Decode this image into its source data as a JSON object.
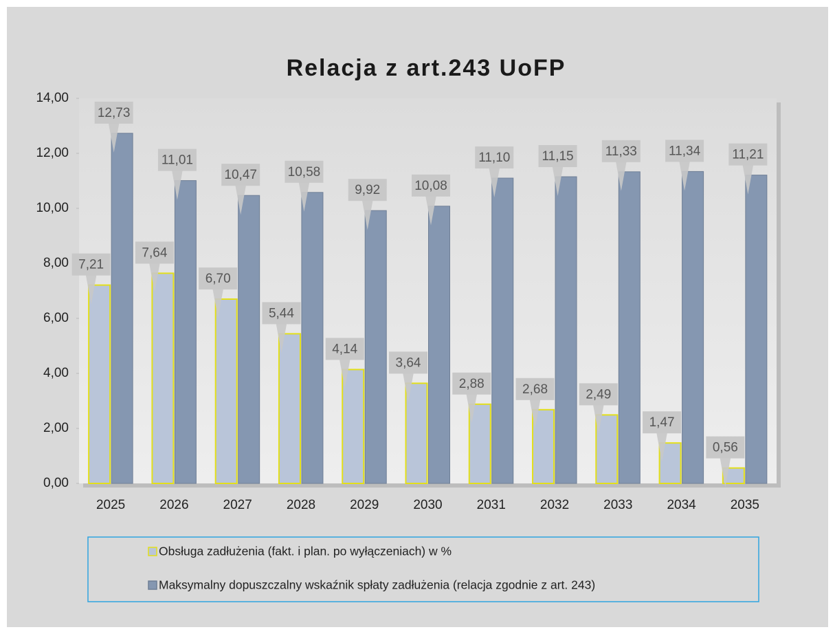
{
  "chart_data": {
    "type": "bar",
    "title": "Relacja z art.243 UoFP",
    "categories": [
      "2025",
      "2026",
      "2027",
      "2028",
      "2029",
      "2030",
      "2031",
      "2032",
      "2033",
      "2034",
      "2035"
    ],
    "series": [
      {
        "name": "Obsługa zadłużenia (fakt. i plan. po wyłączeniach) w %",
        "color": "#b9c5d9",
        "values": [
          7.21,
          7.64,
          6.7,
          5.44,
          4.14,
          3.64,
          2.88,
          2.68,
          2.49,
          1.47,
          0.56
        ],
        "value_labels": [
          "7,21",
          "7,64",
          "6,70",
          "5,44",
          "4,14",
          "3,64",
          "2,88",
          "2,68",
          "2,49",
          "1,47",
          "0,56"
        ]
      },
      {
        "name": "Maksymalny dopuszczalny wskaźnik spłaty  zadłużenia (relacja zgodnie z art. 243)",
        "color": "#8597b1",
        "values": [
          12.73,
          11.01,
          10.47,
          10.58,
          9.92,
          10.08,
          11.1,
          11.15,
          11.33,
          11.34,
          11.21
        ],
        "value_labels": [
          "12,73",
          "11,01",
          "10,47",
          "10,58",
          "9,92",
          "10,08",
          "11,10",
          "11,15",
          "11,33",
          "11,34",
          "11,21"
        ]
      }
    ],
    "ylim": [
      0,
      14
    ],
    "yticks": [
      {
        "value": 0,
        "label": "0,00"
      },
      {
        "value": 2,
        "label": "2,00"
      },
      {
        "value": 4,
        "label": "4,00"
      },
      {
        "value": 6,
        "label": "6,00"
      },
      {
        "value": 8,
        "label": "8,00"
      },
      {
        "value": 10,
        "label": "10,00"
      },
      {
        "value": 12,
        "label": "12,00"
      },
      {
        "value": 14,
        "label": "14,00"
      }
    ],
    "legend": "bottom"
  }
}
